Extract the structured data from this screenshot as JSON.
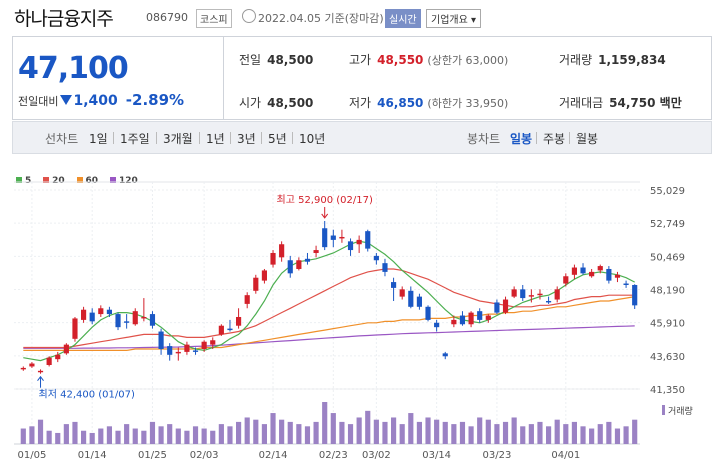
{
  "header": {
    "name": "하나금융지주",
    "code": "086790",
    "market": "코스피",
    "date": "2022.04.05 기준(장마감)",
    "realtime": "실시간",
    "company_info": "기업개요 ▾"
  },
  "summary": {
    "price": "47,100",
    "change_label": "전일대비",
    "change_amount": "1,400",
    "change_pct": "-2.89%",
    "prev_close_label": "전일",
    "prev_close": "48,500",
    "open_label": "시가",
    "open": "48,500",
    "high_label": "고가",
    "high": "48,550",
    "upper_limit": "(상한가 63,000)",
    "low_label": "저가",
    "low": "46,850",
    "lower_limit": "(하한가 33,950)",
    "volume_label": "거래량",
    "volume": "1,159,834",
    "amount_label": "거래대금",
    "amount": "54,750 백만"
  },
  "toolbar": {
    "line_chart": "선차트",
    "d1": "1일",
    "w1": "1주일",
    "m3": "3개월",
    "y1": "1년",
    "y3": "3년",
    "y5": "5년",
    "y10": "10년",
    "candle_chart": "봉차트",
    "daily": "일봉",
    "weekly": "주봉",
    "monthly": "월봉"
  },
  "colors": {
    "up": "#d3202a",
    "down": "#1a57c4",
    "ma5": "#4caf50",
    "ma20": "#e0524a",
    "ma60": "#f0902a",
    "ma120": "#9a57c4",
    "volume": "#9b82c4"
  },
  "chart_data": {
    "type": "candlestick",
    "legend": [
      "5",
      "20",
      "60",
      "120"
    ],
    "y_ticks": [
      "55,029",
      "52,749",
      "50,469",
      "48,190",
      "45,910",
      "43,630",
      "41,350"
    ],
    "ylim": [
      41350,
      55029
    ],
    "x_ticks": [
      "01/05",
      "01/14",
      "01/25",
      "02/03",
      "02/14",
      "02/23",
      "03/02",
      "03/14",
      "03/23",
      "04/01"
    ],
    "x_tick_index": [
      1,
      8,
      15,
      21,
      29,
      36,
      41,
      48,
      55,
      63
    ],
    "high_note": "최고 52,900 (02/17)",
    "low_note": "최저 42,400 (01/07)",
    "volume_label": "거래량",
    "candles": [
      [
        42700,
        42900,
        42600,
        42800
      ],
      [
        42900,
        43200,
        42800,
        43100
      ],
      [
        42500,
        42700,
        42400,
        42600
      ],
      [
        43000,
        43600,
        42900,
        43500
      ],
      [
        43400,
        43900,
        43200,
        43700
      ],
      [
        43800,
        44500,
        43700,
        44400
      ],
      [
        44800,
        46300,
        44600,
        46200
      ],
      [
        46100,
        47000,
        45900,
        46800
      ],
      [
        46600,
        46900,
        45800,
        46000
      ],
      [
        46500,
        47100,
        46300,
        46900
      ],
      [
        46800,
        47000,
        46300,
        46500
      ],
      [
        46500,
        46600,
        45400,
        45600
      ],
      [
        46000,
        46500,
        45500,
        45900
      ],
      [
        45800,
        46900,
        45700,
        46700
      ],
      [
        46200,
        47600,
        46000,
        46300
      ],
      [
        46500,
        46700,
        45500,
        45700
      ],
      [
        45300,
        45500,
        43700,
        44100
      ],
      [
        44300,
        44500,
        43300,
        43700
      ],
      [
        43800,
        44200,
        43300,
        43900
      ],
      [
        43900,
        44600,
        43700,
        44400
      ],
      [
        44000,
        44200,
        43700,
        43900
      ],
      [
        44100,
        44700,
        43900,
        44600
      ],
      [
        44400,
        44900,
        44100,
        44700
      ],
      [
        45100,
        45800,
        45000,
        45700
      ],
      [
        45500,
        46100,
        45300,
        45400
      ],
      [
        45700,
        46900,
        45500,
        46300
      ],
      [
        47200,
        48000,
        46900,
        47800
      ],
      [
        48100,
        49200,
        47900,
        49000
      ],
      [
        48800,
        49600,
        48600,
        49500
      ],
      [
        49900,
        50900,
        49700,
        50700
      ],
      [
        50400,
        51500,
        50100,
        51300
      ],
      [
        50200,
        50500,
        49000,
        49300
      ],
      [
        49600,
        50400,
        49500,
        50200
      ],
      [
        50300,
        50700,
        49900,
        50100
      ],
      [
        50700,
        51200,
        50400,
        50900
      ],
      [
        52400,
        52900,
        50900,
        51100
      ],
      [
        51900,
        52300,
        51100,
        51600
      ],
      [
        51700,
        52300,
        51400,
        51800
      ],
      [
        51500,
        51700,
        50500,
        50900
      ],
      [
        51300,
        51900,
        50700,
        51600
      ],
      [
        52200,
        52300,
        50800,
        51000
      ],
      [
        50500,
        50700,
        49900,
        50200
      ],
      [
        50000,
        50300,
        49100,
        49400
      ],
      [
        48700,
        49000,
        47400,
        48300
      ],
      [
        47700,
        48400,
        47500,
        48200
      ],
      [
        48100,
        48400,
        46900,
        47000
      ],
      [
        47700,
        47900,
        46800,
        47000
      ],
      [
        47000,
        47100,
        46000,
        46100
      ],
      [
        45900,
        46100,
        45300,
        45600
      ],
      [
        43800,
        43900,
        43400,
        43600
      ],
      [
        45800,
        46400,
        45600,
        46100
      ],
      [
        46400,
        46700,
        45700,
        45800
      ],
      [
        45800,
        46700,
        45600,
        46600
      ],
      [
        46700,
        46900,
        45900,
        46100
      ],
      [
        46100,
        46500,
        45900,
        46400
      ],
      [
        47300,
        47500,
        46500,
        46600
      ],
      [
        46600,
        47700,
        46500,
        47500
      ],
      [
        47700,
        48400,
        47600,
        48200
      ],
      [
        48200,
        48500,
        47400,
        47600
      ],
      [
        47700,
        48200,
        47300,
        47800
      ],
      [
        47800,
        48200,
        47500,
        47900
      ],
      [
        47400,
        47700,
        47200,
        47300
      ],
      [
        47500,
        48400,
        47300,
        48200
      ],
      [
        48600,
        49300,
        48400,
        49100
      ],
      [
        49200,
        49900,
        48900,
        49700
      ],
      [
        49700,
        50000,
        49200,
        49300
      ],
      [
        49100,
        49600,
        49000,
        49400
      ],
      [
        49500,
        49900,
        49300,
        49800
      ],
      [
        49600,
        49800,
        48600,
        48800
      ],
      [
        49000,
        49400,
        48700,
        49200
      ],
      [
        48600,
        48800,
        48300,
        48500
      ],
      [
        48500,
        48550,
        46850,
        47100
      ]
    ],
    "ma5": [
      43500,
      43400,
      43300,
      43500,
      43700,
      44000,
      44400,
      45000,
      45600,
      46100,
      46400,
      46600,
      46600,
      46500,
      46300,
      46000,
      45600,
      45100,
      44600,
      44300,
      44100,
      44000,
      44200,
      44400,
      44800,
      45100,
      45700,
      46500,
      47400,
      48500,
      49300,
      49800,
      50100,
      50200,
      50300,
      50500,
      50700,
      51000,
      51300,
      51500,
      51400,
      51000,
      50600,
      50100,
      49500,
      49000,
      48500,
      48000,
      47400,
      46800,
      46300,
      46100,
      46000,
      45900,
      46100,
      46400,
      46700,
      47000,
      47300,
      47500,
      47700,
      47800,
      48100,
      48500,
      48900,
      49200,
      49300,
      49400,
      49300,
      49200,
      49000,
      48700
    ],
    "ma20": [
      44200,
      44200,
      44200,
      44200,
      44200,
      44200,
      44300,
      44400,
      44500,
      44600,
      44700,
      44800,
      44900,
      45000,
      45100,
      45100,
      45100,
      45000,
      45000,
      44900,
      44900,
      44900,
      45000,
      45100,
      45200,
      45300,
      45500,
      45700,
      46000,
      46300,
      46600,
      46900,
      47200,
      47500,
      47800,
      48100,
      48400,
      48700,
      49000,
      49200,
      49400,
      49500,
      49600,
      49600,
      49500,
      49300,
      49100,
      48900,
      48600,
      48300,
      48000,
      47800,
      47600,
      47400,
      47300,
      47200,
      47100,
      47000,
      47000,
      47000,
      47100,
      47100,
      47200,
      47300,
      47500,
      47600,
      47700,
      47700,
      47800,
      47800,
      47800,
      47800
    ],
    "ma60": [
      44000,
      44000,
      44000,
      44000,
      44000,
      44000,
      44000,
      44000,
      44000,
      44000,
      44000,
      44000,
      44000,
      44100,
      44100,
      44100,
      44100,
      44100,
      44100,
      44100,
      44100,
      44200,
      44200,
      44200,
      44300,
      44400,
      44500,
      44600,
      44700,
      44800,
      44900,
      45000,
      45100,
      45200,
      45300,
      45400,
      45500,
      45600,
      45700,
      45800,
      45900,
      45900,
      46000,
      46000,
      46100,
      46100,
      46100,
      46200,
      46200,
      46200,
      46300,
      46300,
      46400,
      46400,
      46500,
      46500,
      46600,
      46600,
      46700,
      46700,
      46800,
      46900,
      47000,
      47000,
      47100,
      47200,
      47300,
      47400,
      47400,
      47500,
      47600,
      47700
    ],
    "ma120": [
      44150,
      44150,
      44150,
      44150,
      44150,
      44150,
      44150,
      44160,
      44160,
      44170,
      44170,
      44180,
      44180,
      44190,
      44200,
      44210,
      44220,
      44230,
      44240,
      44260,
      44280,
      44300,
      44330,
      44360,
      44400,
      44440,
      44480,
      44520,
      44560,
      44600,
      44640,
      44680,
      44720,
      44760,
      44800,
      44840,
      44880,
      44920,
      44960,
      45000,
      45030,
      45060,
      45090,
      45120,
      45150,
      45170,
      45190,
      45210,
      45230,
      45250,
      45270,
      45290,
      45310,
      45330,
      45350,
      45370,
      45390,
      45410,
      45430,
      45450,
      45470,
      45490,
      45510,
      45530,
      45550,
      45570,
      45590,
      45610,
      45630,
      45650,
      45670,
      45690
    ],
    "volumes": [
      0.35,
      0.4,
      0.55,
      0.3,
      0.25,
      0.45,
      0.5,
      0.3,
      0.25,
      0.35,
      0.4,
      0.3,
      0.45,
      0.35,
      0.3,
      0.5,
      0.4,
      0.45,
      0.35,
      0.3,
      0.4,
      0.35,
      0.3,
      0.45,
      0.4,
      0.5,
      0.6,
      0.55,
      0.45,
      0.7,
      0.55,
      0.5,
      0.45,
      0.4,
      0.5,
      0.95,
      0.7,
      0.5,
      0.45,
      0.6,
      0.75,
      0.55,
      0.5,
      0.6,
      0.45,
      0.7,
      0.5,
      0.6,
      0.55,
      0.5,
      0.45,
      0.5,
      0.4,
      0.6,
      0.55,
      0.45,
      0.5,
      0.6,
      0.4,
      0.45,
      0.5,
      0.4,
      0.55,
      0.45,
      0.5,
      0.4,
      0.35,
      0.45,
      0.5,
      0.35,
      0.4,
      0.55
    ]
  }
}
